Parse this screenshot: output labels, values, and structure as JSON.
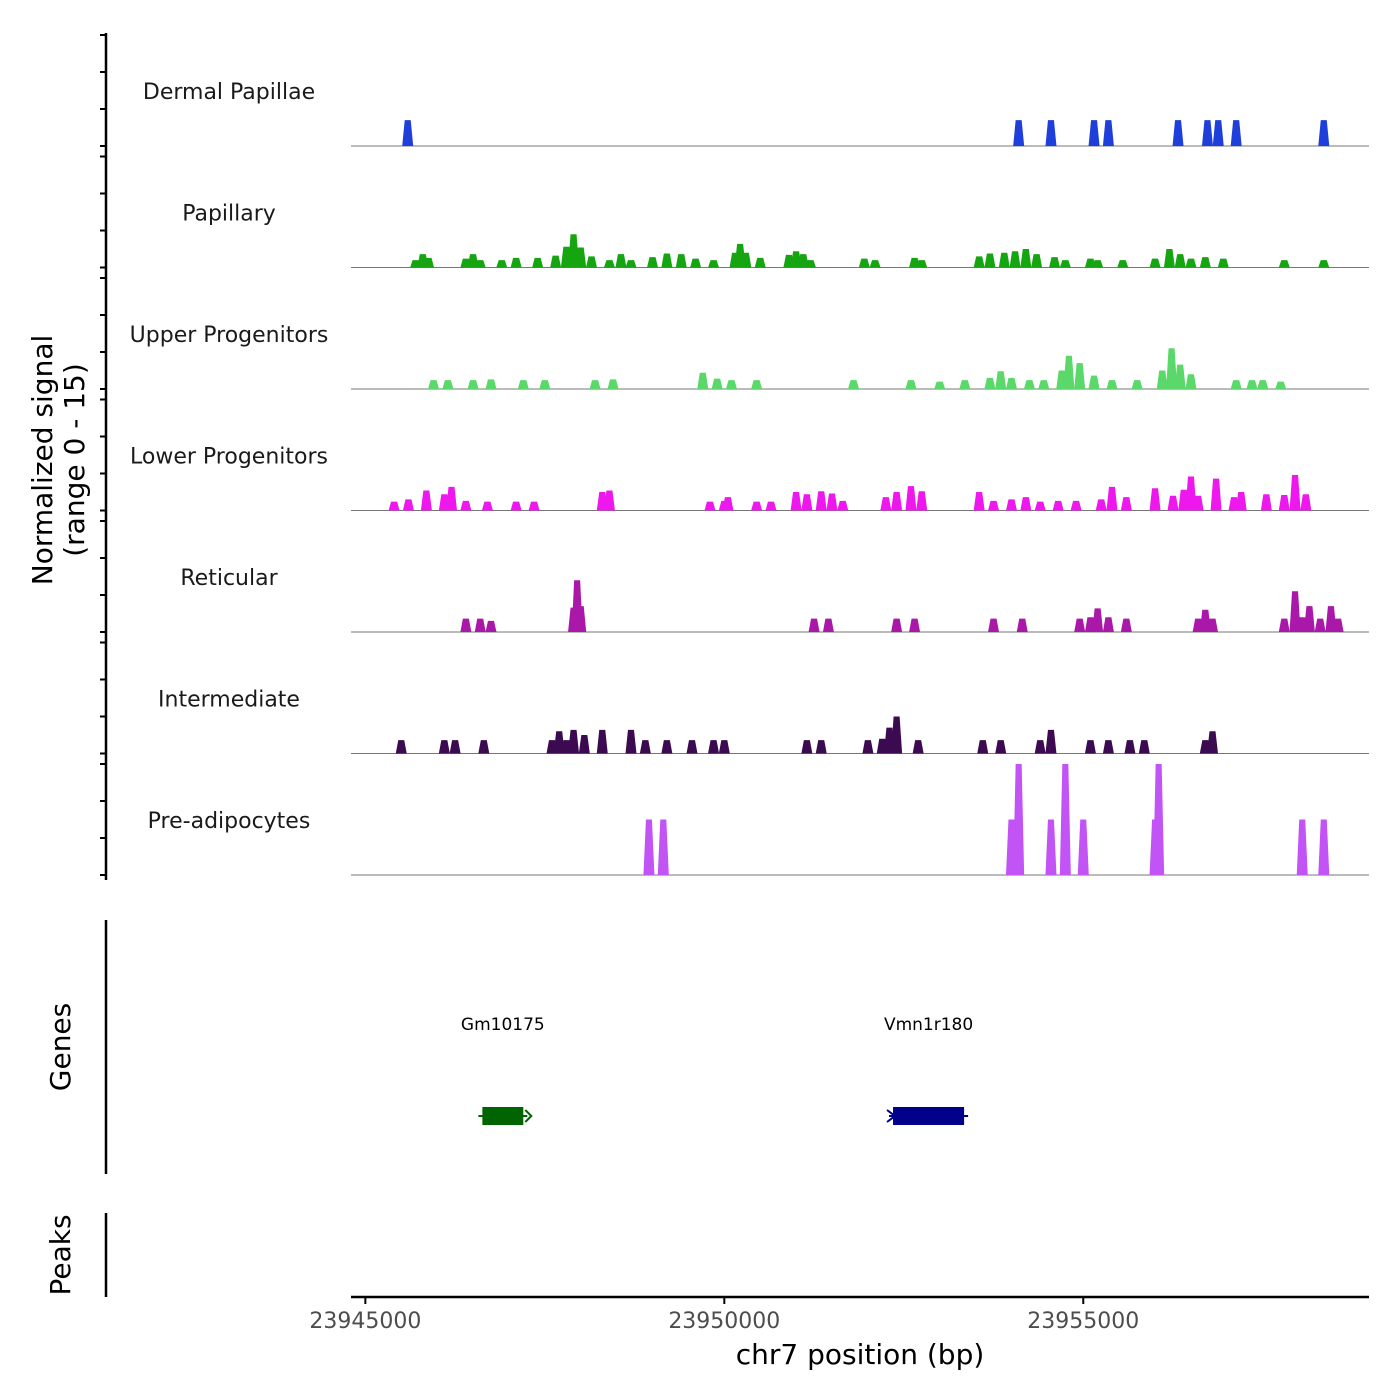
{
  "chart_data": {
    "type": "area",
    "title": "",
    "chromosome": "chr7",
    "xlabel": "chr7 position (bp)",
    "ylabel": [
      "Normalized signal",
      "(range 0 - 15)"
    ],
    "ylim": [
      0,
      15
    ],
    "xlim": [
      23944800,
      23958980
    ],
    "xticks": [
      23945000,
      23950000,
      23955000
    ],
    "xtick_labels": [
      "23945000",
      "23950000",
      "23955000"
    ],
    "series": [
      {
        "name": "Dermal Papillae",
        "color": "#1f3fdb",
        "values": [
          [
            23945590,
            3.5
          ],
          [
            23954100,
            3.5
          ],
          [
            23954550,
            3.5
          ],
          [
            23955150,
            3.5
          ],
          [
            23955350,
            3.5
          ],
          [
            23956320,
            3.5
          ],
          [
            23956730,
            3.5
          ],
          [
            23956880,
            3.5
          ],
          [
            23957130,
            3.5
          ],
          [
            23958350,
            3.5
          ]
        ]
      },
      {
        "name": "Papillary",
        "color": "#15a510",
        "values": [
          [
            23945700,
            1.0
          ],
          [
            23945800,
            1.8
          ],
          [
            23945880,
            1.3
          ],
          [
            23946400,
            1.2
          ],
          [
            23946500,
            1.8
          ],
          [
            23946600,
            1.0
          ],
          [
            23946900,
            1.0
          ],
          [
            23947100,
            1.3
          ],
          [
            23947400,
            1.3
          ],
          [
            23947650,
            1.6
          ],
          [
            23947800,
            2.8
          ],
          [
            23947900,
            4.5
          ],
          [
            23948000,
            2.7
          ],
          [
            23948150,
            1.5
          ],
          [
            23948400,
            1.0
          ],
          [
            23948560,
            1.8
          ],
          [
            23948700,
            1.0
          ],
          [
            23949000,
            1.4
          ],
          [
            23949200,
            1.9
          ],
          [
            23949400,
            1.8
          ],
          [
            23949600,
            1.2
          ],
          [
            23949850,
            1.0
          ],
          [
            23950150,
            2.0
          ],
          [
            23950220,
            3.2
          ],
          [
            23950300,
            2.0
          ],
          [
            23950500,
            1.3
          ],
          [
            23950900,
            1.7
          ],
          [
            23951000,
            2.2
          ],
          [
            23951100,
            1.8
          ],
          [
            23951200,
            1.0
          ],
          [
            23951950,
            1.2
          ],
          [
            23952100,
            1.0
          ],
          [
            23952650,
            1.3
          ],
          [
            23952750,
            1.0
          ],
          [
            23953550,
            1.5
          ],
          [
            23953700,
            1.9
          ],
          [
            23953900,
            2.0
          ],
          [
            23954050,
            2.2
          ],
          [
            23954200,
            2.5
          ],
          [
            23954350,
            1.8
          ],
          [
            23954600,
            1.4
          ],
          [
            23954750,
            1.0
          ],
          [
            23955100,
            1.2
          ],
          [
            23955200,
            1.0
          ],
          [
            23955550,
            1.0
          ],
          [
            23956000,
            1.2
          ],
          [
            23956200,
            2.5
          ],
          [
            23956350,
            1.8
          ],
          [
            23956500,
            1.2
          ],
          [
            23956700,
            1.4
          ],
          [
            23956950,
            1.2
          ],
          [
            23957800,
            1.0
          ],
          [
            23958350,
            1.0
          ]
        ]
      },
      {
        "name": "Upper Progenitors",
        "color": "#5ad86a",
        "values": [
          [
            23945950,
            1.2
          ],
          [
            23946150,
            1.2
          ],
          [
            23946500,
            1.2
          ],
          [
            23946750,
            1.3
          ],
          [
            23947200,
            1.2
          ],
          [
            23947500,
            1.2
          ],
          [
            23948200,
            1.2
          ],
          [
            23948450,
            1.3
          ],
          [
            23949700,
            2.2
          ],
          [
            23949900,
            1.4
          ],
          [
            23950100,
            1.2
          ],
          [
            23950450,
            1.2
          ],
          [
            23951800,
            1.2
          ],
          [
            23952600,
            1.2
          ],
          [
            23953000,
            1.0
          ],
          [
            23953350,
            1.2
          ],
          [
            23953700,
            1.5
          ],
          [
            23953850,
            2.4
          ],
          [
            23954000,
            1.5
          ],
          [
            23954250,
            1.2
          ],
          [
            23954450,
            1.2
          ],
          [
            23954700,
            2.5
          ],
          [
            23954800,
            4.5
          ],
          [
            23954950,
            3.5
          ],
          [
            23955150,
            1.8
          ],
          [
            23955400,
            1.2
          ],
          [
            23955750,
            1.2
          ],
          [
            23956100,
            2.5
          ],
          [
            23956230,
            5.5
          ],
          [
            23956350,
            3.3
          ],
          [
            23956500,
            2.0
          ],
          [
            23957130,
            1.2
          ],
          [
            23957350,
            1.2
          ],
          [
            23957500,
            1.2
          ],
          [
            23957750,
            1.0
          ]
        ]
      },
      {
        "name": "Lower Progenitors",
        "color": "#ee18ee",
        "values": [
          [
            23945400,
            1.2
          ],
          [
            23945600,
            1.5
          ],
          [
            23945850,
            2.7
          ],
          [
            23946100,
            2.2
          ],
          [
            23946200,
            3.2
          ],
          [
            23946400,
            1.3
          ],
          [
            23946700,
            1.2
          ],
          [
            23947100,
            1.2
          ],
          [
            23947350,
            1.2
          ],
          [
            23948300,
            2.5
          ],
          [
            23948400,
            2.7
          ],
          [
            23949800,
            1.2
          ],
          [
            23950000,
            1.3
          ],
          [
            23950050,
            1.8
          ],
          [
            23950450,
            1.2
          ],
          [
            23950650,
            1.2
          ],
          [
            23951000,
            2.5
          ],
          [
            23951150,
            2.2
          ],
          [
            23951350,
            2.6
          ],
          [
            23951500,
            2.3
          ],
          [
            23951650,
            1.3
          ],
          [
            23952250,
            1.8
          ],
          [
            23952400,
            2.5
          ],
          [
            23952600,
            3.3
          ],
          [
            23952750,
            2.6
          ],
          [
            23953550,
            2.5
          ],
          [
            23953750,
            1.3
          ],
          [
            23954000,
            1.5
          ],
          [
            23954200,
            1.8
          ],
          [
            23954400,
            1.2
          ],
          [
            23954650,
            1.3
          ],
          [
            23954900,
            1.3
          ],
          [
            23955250,
            1.5
          ],
          [
            23955400,
            3.2
          ],
          [
            23955600,
            1.8
          ],
          [
            23956000,
            3.0
          ],
          [
            23956250,
            2.0
          ],
          [
            23956400,
            2.8
          ],
          [
            23956500,
            4.6
          ],
          [
            23956600,
            2.0
          ],
          [
            23956850,
            4.3
          ],
          [
            23957100,
            1.8
          ],
          [
            23957200,
            2.5
          ],
          [
            23957550,
            2.2
          ],
          [
            23957800,
            2.1
          ],
          [
            23957950,
            4.8
          ],
          [
            23958100,
            2.2
          ]
        ]
      },
      {
        "name": "Reticular",
        "color": "#aa18aa",
        "values": [
          [
            23946400,
            1.8
          ],
          [
            23946600,
            1.8
          ],
          [
            23946750,
            1.5
          ],
          [
            23947900,
            3.3
          ],
          [
            23947950,
            7.0
          ],
          [
            23948000,
            3.5
          ],
          [
            23951250,
            1.8
          ],
          [
            23951450,
            1.8
          ],
          [
            23952400,
            1.8
          ],
          [
            23952650,
            1.8
          ],
          [
            23953750,
            1.8
          ],
          [
            23954150,
            1.8
          ],
          [
            23954950,
            1.8
          ],
          [
            23955100,
            2.0
          ],
          [
            23955200,
            3.2
          ],
          [
            23955350,
            2.0
          ],
          [
            23955600,
            1.8
          ],
          [
            23956600,
            1.8
          ],
          [
            23956700,
            3.0
          ],
          [
            23956800,
            1.8
          ],
          [
            23957800,
            1.8
          ],
          [
            23957950,
            5.5
          ],
          [
            23958050,
            2.0
          ],
          [
            23958150,
            3.5
          ],
          [
            23958300,
            1.8
          ],
          [
            23958450,
            3.5
          ],
          [
            23958550,
            1.8
          ]
        ]
      },
      {
        "name": "Intermediate",
        "color": "#3c0a50",
        "values": [
          [
            23945500,
            1.8
          ],
          [
            23946100,
            1.8
          ],
          [
            23946250,
            1.8
          ],
          [
            23946650,
            1.8
          ],
          [
            23947600,
            1.8
          ],
          [
            23947700,
            3.0
          ],
          [
            23947800,
            1.8
          ],
          [
            23947900,
            3.2
          ],
          [
            23948050,
            2.5
          ],
          [
            23948300,
            3.2
          ],
          [
            23948700,
            3.2
          ],
          [
            23948900,
            1.8
          ],
          [
            23949200,
            1.8
          ],
          [
            23949550,
            1.8
          ],
          [
            23949850,
            1.8
          ],
          [
            23950000,
            1.8
          ],
          [
            23951150,
            1.8
          ],
          [
            23951350,
            1.8
          ],
          [
            23952000,
            1.8
          ],
          [
            23952200,
            2.0
          ],
          [
            23952300,
            3.5
          ],
          [
            23952400,
            5.0
          ],
          [
            23952700,
            1.8
          ],
          [
            23953600,
            1.8
          ],
          [
            23953850,
            1.8
          ],
          [
            23954400,
            1.8
          ],
          [
            23954550,
            3.2
          ],
          [
            23955100,
            1.8
          ],
          [
            23955350,
            1.8
          ],
          [
            23955650,
            1.8
          ],
          [
            23955850,
            1.8
          ],
          [
            23956700,
            1.8
          ],
          [
            23956800,
            3.0
          ]
        ]
      },
      {
        "name": "Pre-adipocytes",
        "color": "#c254f5",
        "values": [
          [
            23948950,
            7.5
          ],
          [
            23949150,
            7.5
          ],
          [
            23954000,
            7.5
          ],
          [
            23954100,
            15.0
          ],
          [
            23954550,
            7.5
          ],
          [
            23954750,
            15.0
          ],
          [
            23955000,
            7.5
          ],
          [
            23956000,
            7.5
          ],
          [
            23956050,
            15.0
          ],
          [
            23958050,
            7.5
          ],
          [
            23958350,
            7.5
          ]
        ]
      }
    ],
    "genes_track": {
      "label": "Genes",
      "genes": [
        {
          "name": "Gm10175",
          "start": 23946630,
          "end": 23947200,
          "strand": "+",
          "color": "#006400"
        },
        {
          "name": "Vmn1r180",
          "start": 23952350,
          "end": 23953340,
          "strand": "-",
          "color": "#00008b"
        }
      ]
    },
    "peaks_track": {
      "label": "Peaks",
      "peaks": []
    }
  }
}
